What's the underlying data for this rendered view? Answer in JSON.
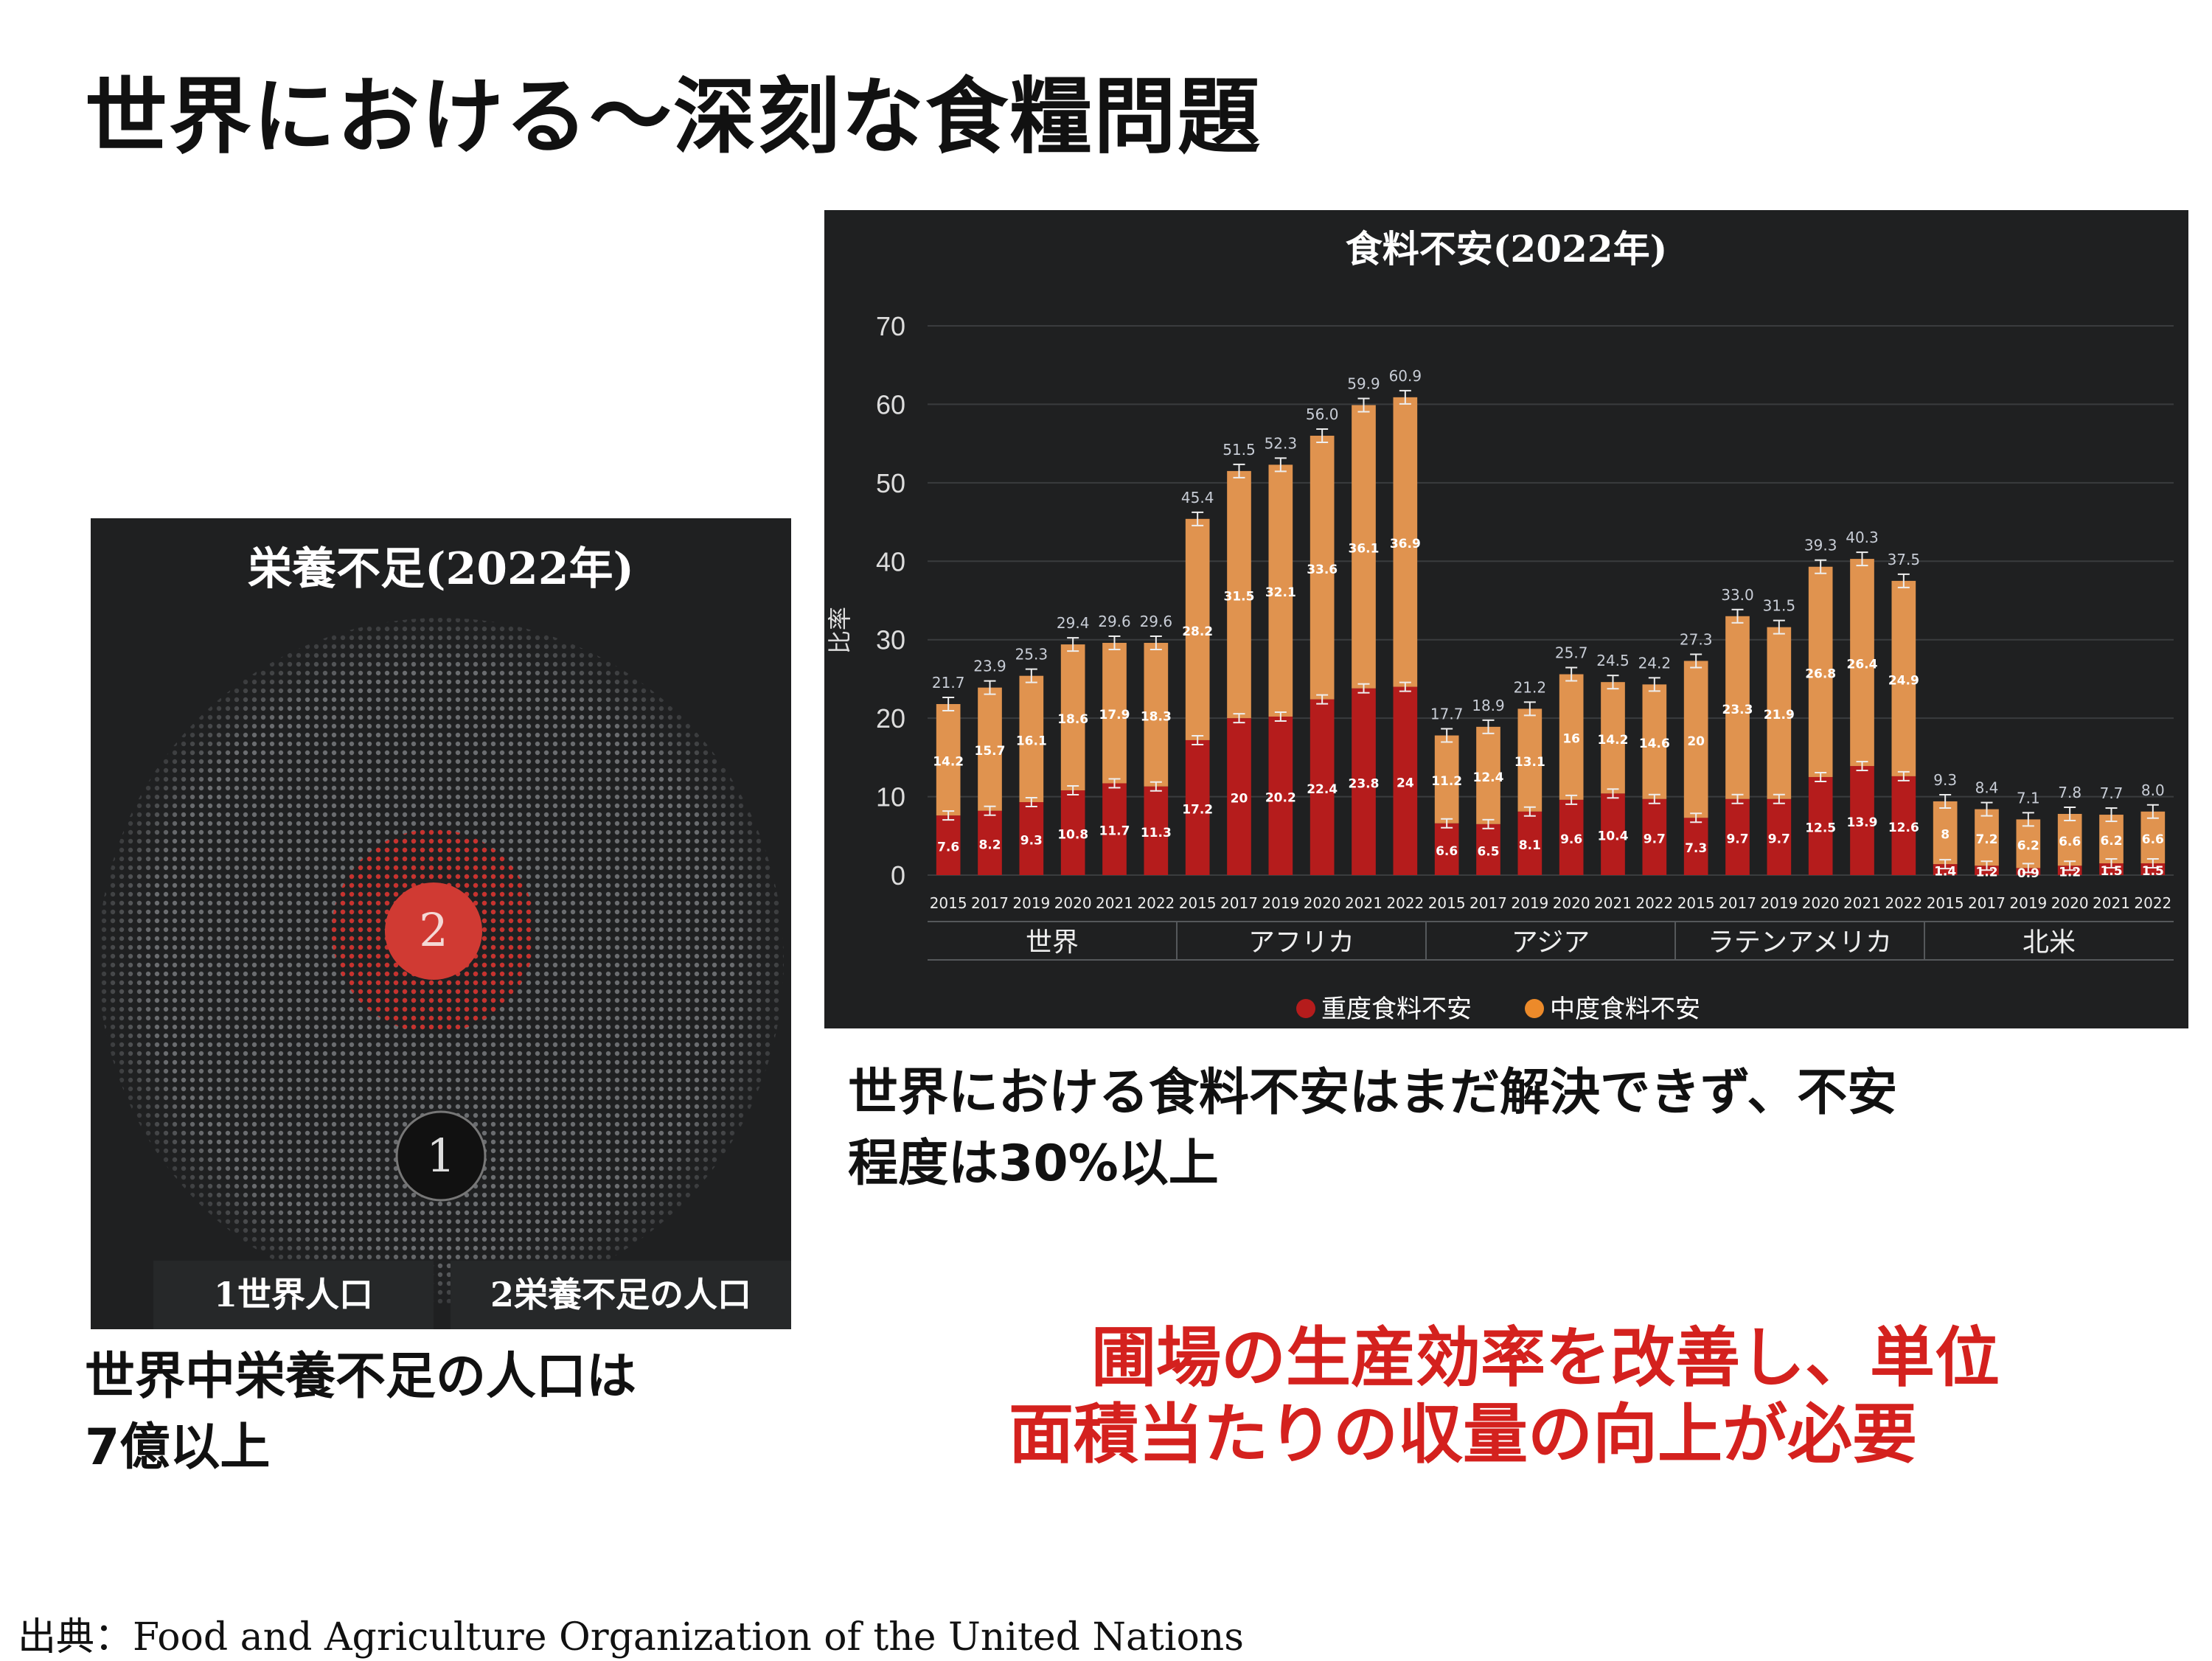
{
  "slide": {
    "title": "世界における～深刻な食糧問題",
    "source": "出典：Food and Agriculture Organization of the United Nations"
  },
  "undernourishment": {
    "title": "栄養不足(2022年)",
    "markers": [
      "2",
      "1"
    ],
    "legend": [
      "1世界人口",
      "2栄養不足の人口"
    ],
    "caption_lines": [
      "世界中栄養不足の人口は",
      "7億以上"
    ],
    "colors": {
      "world_dots": "#6b6d70",
      "undernourished_dots": "#c8322e",
      "marker_red": "#d03a33"
    }
  },
  "food_insecurity_caption": [
    "世界における食料不安はまだ解決できず、不安",
    "程度は30%以上"
  ],
  "message": [
    "圃場の生産効率を改善し、単位",
    "面積当たりの収量の向上が必要"
  ],
  "chart_data": {
    "type": "bar",
    "stacked": true,
    "title": "食料不安(2022年)",
    "ylabel": "比率",
    "ylim": [
      0,
      70
    ],
    "yticks": [
      0,
      10,
      20,
      30,
      40,
      50,
      60,
      70
    ],
    "grid": true,
    "legend_position": "bottom",
    "categories": [
      "2015",
      "2017",
      "2019",
      "2020",
      "2021",
      "2022",
      "2015",
      "2017",
      "2019",
      "2020",
      "2021",
      "2022",
      "2015",
      "2017",
      "2019",
      "2020",
      "2021",
      "2022",
      "2015",
      "2017",
      "2019",
      "2020",
      "2021",
      "2022",
      "2015",
      "2017",
      "2019",
      "2020",
      "2021",
      "2022"
    ],
    "groups": [
      "世界",
      "アフリカ",
      "アジア",
      "ラテンアメリカ",
      "北米"
    ],
    "series": [
      {
        "name": "重度食料不安",
        "color": "#b51c1c",
        "values": [
          7.6,
          8.2,
          9.3,
          10.8,
          11.7,
          11.3,
          17.2,
          20,
          20.2,
          22.4,
          23.8,
          24,
          6.6,
          6.5,
          8.1,
          9.6,
          10.4,
          9.7,
          7.3,
          9.7,
          9.7,
          12.5,
          13.9,
          12.6,
          1.4,
          1.2,
          0.9,
          1.2,
          1.5,
          1.5
        ],
        "labels": [
          "7.6",
          "8.2",
          "9.3",
          "10.8",
          "11.7",
          "11.3",
          "17.2",
          "20",
          "20.2",
          "22.4",
          "23.8",
          "24",
          "6.6",
          "6.5",
          "8.1",
          "9.6",
          "10.4",
          "9.7",
          "7.3",
          "9.7",
          "9.7",
          "12.5",
          "13.9",
          "12.6",
          "1.4",
          "1.2",
          "0.9",
          "1.2",
          "1.5",
          "1.5"
        ]
      },
      {
        "name": "中度食料不安",
        "color": "#e0934f",
        "values": [
          14.2,
          15.7,
          16.1,
          18.6,
          17.9,
          18.3,
          28.2,
          31.5,
          32.1,
          33.6,
          36.1,
          36.9,
          11.2,
          12.4,
          13.1,
          16,
          14.2,
          14.6,
          20,
          23.3,
          21.9,
          26.8,
          26.4,
          24.9,
          8,
          7.2,
          6.2,
          6.6,
          6.2,
          6.6
        ],
        "labels": [
          "14.2",
          "15.7",
          "16.1",
          "18.6",
          "17.9",
          "18.3",
          "28.2",
          "31.5",
          "32.1",
          "33.6",
          "36.1",
          "36.9",
          "11.2",
          "12.4",
          "13.1",
          "16",
          "14.2",
          "14.6",
          "20",
          "23.3",
          "21.9",
          "26.8",
          "26.4",
          "24.9",
          "8",
          "7.2",
          "6.2",
          "6.6",
          "6.2",
          "6.6"
        ]
      }
    ],
    "totals": [
      "21.7",
      "23.9",
      "25.3",
      "29.4",
      "29.6",
      "29.6",
      "45.4",
      "51.5",
      "52.3",
      "56.0",
      "59.9",
      "60.9",
      "17.7",
      "18.9",
      "21.2",
      "25.7",
      "24.5",
      "24.2",
      "27.3",
      "33.0",
      "31.5",
      "39.3",
      "40.3",
      "37.5",
      "9.3",
      "8.4",
      "7.1",
      "7.8",
      "7.7",
      "8.0"
    ],
    "error_bars": true
  }
}
